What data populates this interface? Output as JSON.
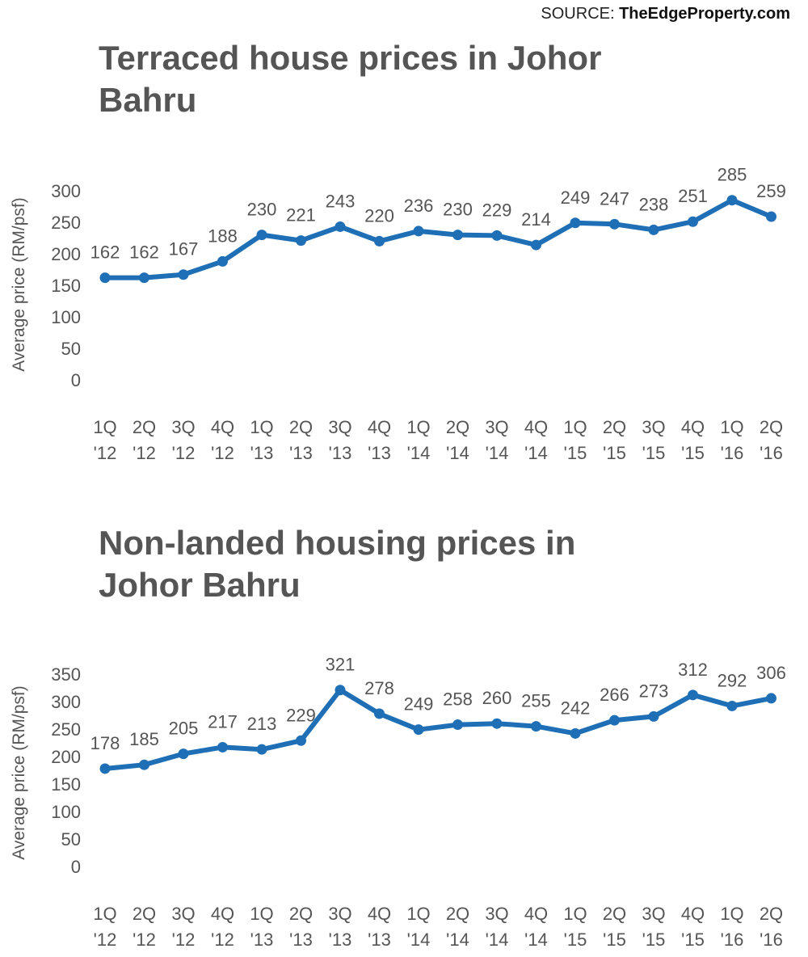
{
  "source": {
    "prefix": "SOURCE:",
    "brand": "TheEdgeProperty.com"
  },
  "chart_data": [
    {
      "type": "line",
      "title": "Terraced house prices in Johor Bahru",
      "ylabel": "Average price (RM/psf)",
      "ylim": [
        0,
        300
      ],
      "yticks": [
        0,
        50,
        100,
        150,
        200,
        250,
        300
      ],
      "x": [
        [
          "1Q",
          "'12"
        ],
        [
          "2Q",
          "'12"
        ],
        [
          "3Q",
          "'12"
        ],
        [
          "4Q",
          "'12"
        ],
        [
          "1Q",
          "'13"
        ],
        [
          "2Q",
          "'13"
        ],
        [
          "3Q",
          "'13"
        ],
        [
          "4Q",
          "'13"
        ],
        [
          "1Q",
          "'14"
        ],
        [
          "2Q",
          "'14"
        ],
        [
          "3Q",
          "'14"
        ],
        [
          "4Q",
          "'14"
        ],
        [
          "1Q",
          "'15"
        ],
        [
          "2Q",
          "'15"
        ],
        [
          "3Q",
          "'15"
        ],
        [
          "4Q",
          "'15"
        ],
        [
          "1Q",
          "'16"
        ],
        [
          "2Q",
          "'16"
        ]
      ],
      "values": [
        162,
        162,
        167,
        188,
        230,
        221,
        243,
        220,
        236,
        230,
        229,
        214,
        249,
        247,
        238,
        251,
        285,
        259
      ],
      "color": "#1f6fb6",
      "grid": false,
      "legend": "none"
    },
    {
      "type": "line",
      "title": "Non-landed housing prices in Johor Bahru",
      "ylabel": "Average price (RM/psf)",
      "ylim": [
        0,
        350
      ],
      "yticks": [
        0,
        50,
        100,
        150,
        200,
        250,
        300,
        350
      ],
      "x": [
        [
          "1Q",
          "'12"
        ],
        [
          "2Q",
          "'12"
        ],
        [
          "3Q",
          "'12"
        ],
        [
          "4Q",
          "'12"
        ],
        [
          "1Q",
          "'13"
        ],
        [
          "2Q",
          "'13"
        ],
        [
          "3Q",
          "'13"
        ],
        [
          "4Q",
          "'13"
        ],
        [
          "1Q",
          "'14"
        ],
        [
          "2Q",
          "'14"
        ],
        [
          "3Q",
          "'14"
        ],
        [
          "4Q",
          "'14"
        ],
        [
          "1Q",
          "'15"
        ],
        [
          "2Q",
          "'15"
        ],
        [
          "3Q",
          "'15"
        ],
        [
          "4Q",
          "'15"
        ],
        [
          "1Q",
          "'16"
        ],
        [
          "2Q",
          "'16"
        ]
      ],
      "values": [
        178,
        185,
        205,
        217,
        213,
        229,
        321,
        278,
        249,
        258,
        260,
        255,
        242,
        266,
        273,
        312,
        292,
        306
      ],
      "color": "#1f6fb6",
      "grid": false,
      "legend": "none"
    }
  ]
}
